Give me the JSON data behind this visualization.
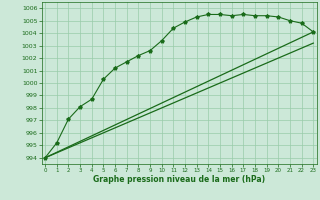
{
  "title": "Graphe pression niveau de la mer (hPa)",
  "bg_color": "#cce8d8",
  "grid_color": "#99ccaa",
  "line_color": "#1a6b1a",
  "ylim": [
    993.5,
    1006.5
  ],
  "xlim": [
    -0.3,
    23.3
  ],
  "yticks": [
    994,
    995,
    996,
    997,
    998,
    999,
    1000,
    1001,
    1002,
    1003,
    1004,
    1005,
    1006
  ],
  "xticks": [
    0,
    1,
    2,
    3,
    4,
    5,
    6,
    7,
    8,
    9,
    10,
    11,
    12,
    13,
    14,
    15,
    16,
    17,
    18,
    19,
    20,
    21,
    22,
    23
  ],
  "main_data": [
    994.0,
    995.2,
    997.1,
    998.1,
    998.7,
    1000.3,
    1001.2,
    1001.7,
    1002.2,
    1002.6,
    1003.4,
    1004.4,
    1004.9,
    1005.3,
    1005.5,
    1005.5,
    1005.4,
    1005.5,
    1005.4,
    1005.4,
    1005.3,
    1005.0,
    1004.8,
    1004.1
  ],
  "upper_line": [
    [
      0,
      994.0
    ],
    [
      23,
      1004.1
    ]
  ],
  "lower_line": [
    [
      0,
      994.0
    ],
    [
      23,
      1003.2
    ]
  ],
  "ytick_fontsize": 4.5,
  "xtick_fontsize": 4.0,
  "xlabel_fontsize": 5.5
}
